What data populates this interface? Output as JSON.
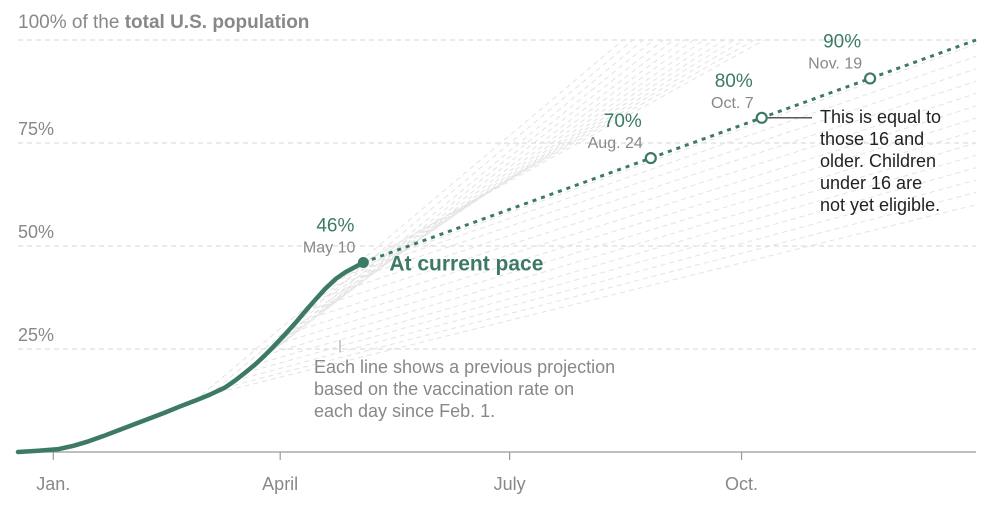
{
  "chart_data": {
    "type": "line",
    "title_prefix": "100% of the ",
    "title_bold": "total U.S. population",
    "ylim": [
      0,
      100
    ],
    "y_ticks": [
      {
        "value": 75,
        "label": "75%"
      },
      {
        "value": 50,
        "label": "50%"
      },
      {
        "value": 25,
        "label": "25%"
      }
    ],
    "x_ticks": [
      {
        "day": 14,
        "label": "Jan."
      },
      {
        "day": 104,
        "label": "April"
      },
      {
        "day": 195,
        "label": "July"
      },
      {
        "day": 287,
        "label": "Oct."
      }
    ],
    "x_range_days": [
      0,
      380
    ],
    "actual_series": {
      "name": "",
      "points": [
        [
          0,
          0
        ],
        [
          8,
          0.3
        ],
        [
          16,
          0.7
        ],
        [
          22,
          1.5
        ],
        [
          28,
          2.6
        ],
        [
          34,
          3.9
        ],
        [
          40,
          5.3
        ],
        [
          46,
          6.7
        ],
        [
          52,
          8.1
        ],
        [
          58,
          9.5
        ],
        [
          64,
          11
        ],
        [
          70,
          12.4
        ],
        [
          76,
          13.9
        ],
        [
          82,
          15.6
        ],
        [
          86,
          17.3
        ],
        [
          90,
          19.2
        ],
        [
          94,
          21.2
        ],
        [
          98,
          23.5
        ],
        [
          102,
          26
        ],
        [
          106,
          28.6
        ],
        [
          110,
          31.3
        ],
        [
          114,
          34.2
        ],
        [
          118,
          37
        ],
        [
          122,
          39.7
        ],
        [
          126,
          42
        ],
        [
          130,
          43.7
        ],
        [
          134,
          45
        ],
        [
          137,
          46
        ]
      ]
    },
    "projection": {
      "label": "At current pace",
      "points": [
        [
          137,
          46
        ],
        [
          380,
          100
        ]
      ]
    },
    "milestones": [
      {
        "day": 137,
        "pct": "46%",
        "date": "May 10"
      },
      {
        "day": 251,
        "pct": "70%",
        "date": "Aug. 24"
      },
      {
        "day": 295,
        "pct": "80%",
        "date": "Oct. 7"
      },
      {
        "day": 338,
        "pct": "90%",
        "date": "Nov. 19"
      }
    ],
    "colors": {
      "series": "#3d7a63",
      "projection_lines": "#e3e3e3",
      "grid": "#dddddd",
      "text_gray": "#888888",
      "label_dark": "#222222"
    },
    "annotations": {
      "previous_projections": [
        "Each line shows a previous projection",
        "based on the vaccination rate on",
        "each day since Feb. 1."
      ],
      "eligibility": [
        "This is equal to",
        "those 16 and",
        "older. Children",
        "under 16 are",
        "not yet eligible."
      ]
    }
  }
}
